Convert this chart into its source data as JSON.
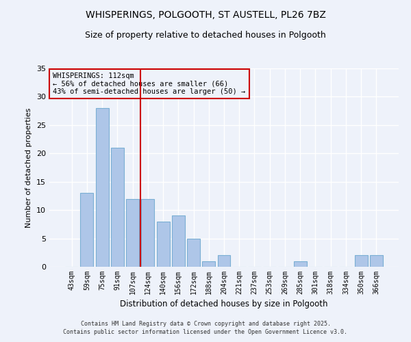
{
  "title": "WHISPERINGS, POLGOOTH, ST AUSTELL, PL26 7BZ",
  "subtitle": "Size of property relative to detached houses in Polgooth",
  "xlabel": "Distribution of detached houses by size in Polgooth",
  "ylabel": "Number of detached properties",
  "categories": [
    "43sqm",
    "59sqm",
    "75sqm",
    "91sqm",
    "107sqm",
    "124sqm",
    "140sqm",
    "156sqm",
    "172sqm",
    "188sqm",
    "204sqm",
    "221sqm",
    "237sqm",
    "253sqm",
    "269sqm",
    "285sqm",
    "301sqm",
    "318sqm",
    "334sqm",
    "350sqm",
    "366sqm"
  ],
  "values": [
    0,
    13,
    28,
    21,
    12,
    12,
    8,
    9,
    5,
    1,
    2,
    0,
    0,
    0,
    0,
    1,
    0,
    0,
    0,
    2,
    2
  ],
  "bar_color": "#aec6e8",
  "bar_edge_color": "#7aafd4",
  "vline_x": 4.5,
  "vline_color": "#cc0000",
  "annotation_title": "WHISPERINGS: 112sqm",
  "annotation_line2": "← 56% of detached houses are smaller (66)",
  "annotation_line3": "43% of semi-detached houses are larger (50) →",
  "annotation_box_color": "#cc0000",
  "ylim": [
    0,
    35
  ],
  "yticks": [
    0,
    5,
    10,
    15,
    20,
    25,
    30,
    35
  ],
  "background_color": "#eef2fa",
  "footer_line1": "Contains HM Land Registry data © Crown copyright and database right 2025.",
  "footer_line2": "Contains public sector information licensed under the Open Government Licence v3.0."
}
